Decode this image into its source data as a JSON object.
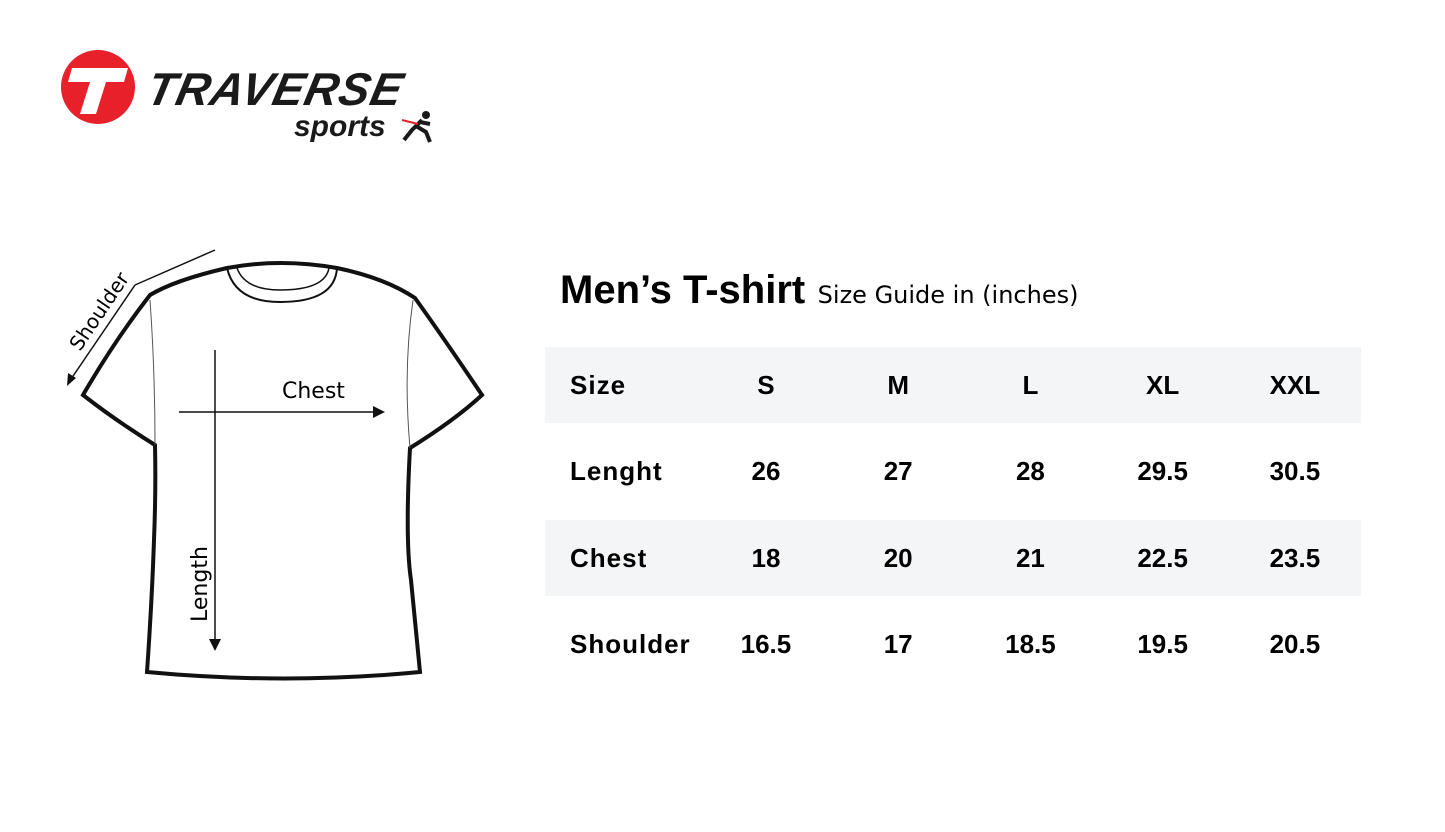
{
  "brand": {
    "name": "TRAVERSE",
    "sub": "sports",
    "accent": "#e8202a"
  },
  "diagram": {
    "shoulder_label": "Shoulder",
    "chest_label": "Chest",
    "length_label": "Length"
  },
  "title": {
    "main": "Men’s T-shirt",
    "sub": "Size Guide in (inches)"
  },
  "table": {
    "header": [
      "Size",
      "S",
      "M",
      "L",
      "XL",
      "XXL"
    ],
    "rows": [
      [
        "Lenght",
        "26",
        "27",
        "28",
        "29.5",
        "30.5"
      ],
      [
        "Chest",
        "18",
        "20",
        "21",
        "22.5",
        "23.5"
      ],
      [
        "Shoulder",
        "16.5",
        "17",
        "18.5",
        "19.5",
        "20.5"
      ]
    ],
    "shade_color": "#f4f5f7"
  }
}
